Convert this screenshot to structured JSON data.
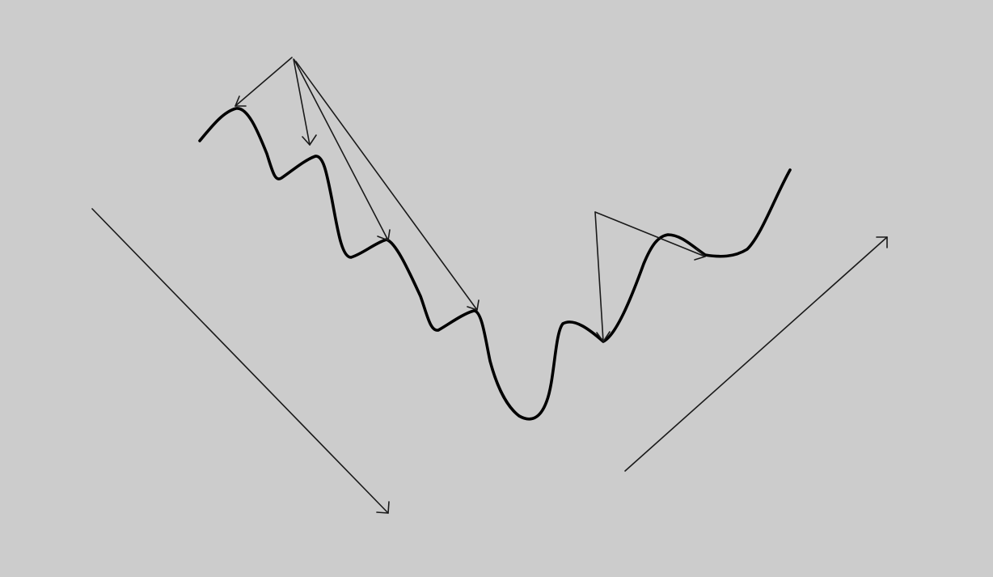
{
  "canvas": {
    "background_color": "#cccccc",
    "stroke_color": "#000000"
  },
  "labels": {}
}
